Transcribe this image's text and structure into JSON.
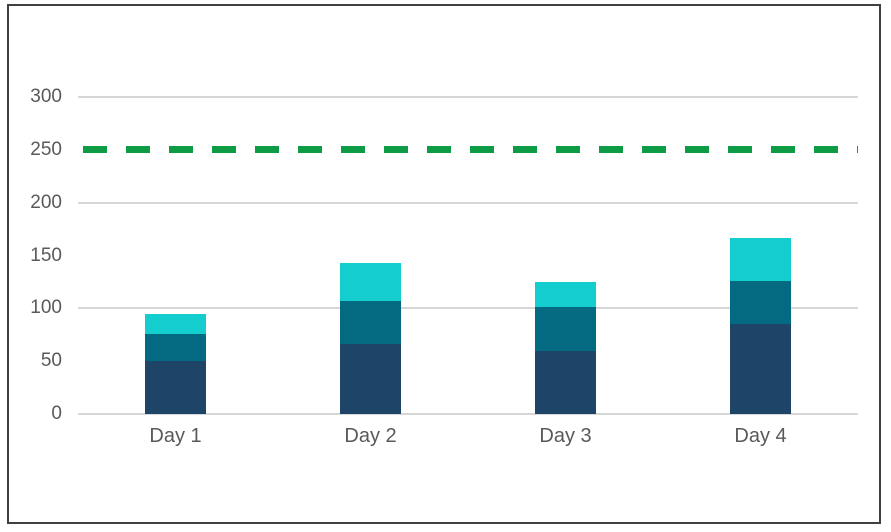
{
  "chart_data": {
    "type": "bar",
    "stacked": true,
    "title": "",
    "categories": [
      "Day 1",
      "Day 2",
      "Day 3",
      "Day 4"
    ],
    "series": [
      {
        "color": "#1e4467",
        "values": [
          50,
          66,
          60,
          85
        ]
      },
      {
        "color": "#046a81",
        "values": [
          26,
          41,
          41,
          41
        ]
      },
      {
        "color": "#13cdce",
        "values": [
          19,
          36,
          24,
          41
        ]
      }
    ],
    "stack_totals": [
      95,
      143,
      125,
      167
    ],
    "reference_line": {
      "value": 250,
      "style": "dashed",
      "color": "#0d9c45"
    },
    "y_axis": {
      "min": 0,
      "max": 300,
      "tick_step": 50,
      "tick_labels": [
        "0",
        "50",
        "100",
        "150",
        "200",
        "250",
        "300"
      ],
      "gridline_values": [
        0,
        100,
        200,
        300
      ],
      "label_color": "#595959"
    },
    "x_axis": {
      "label_color": "#595959"
    },
    "grid": true,
    "legend": false,
    "gridline_color": "#d6d6d6"
  },
  "frame": {
    "border_color": "#3f3f3f",
    "background_color": "#ffffff"
  }
}
